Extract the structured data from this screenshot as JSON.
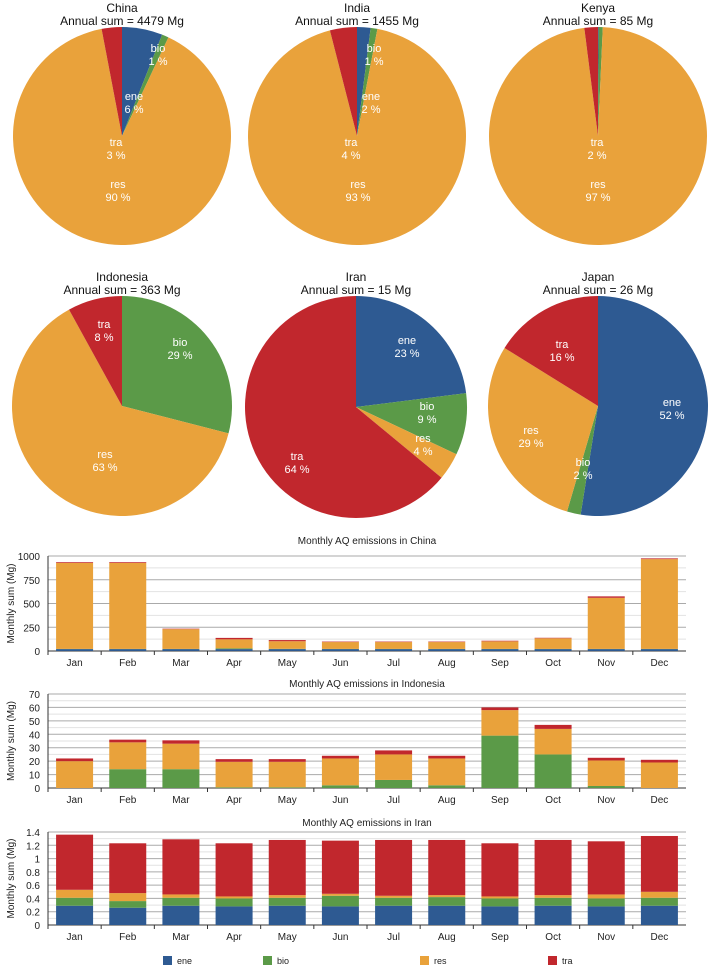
{
  "colors": {
    "ene": "#2e5a92",
    "bio": "#5b9a48",
    "res": "#e9a23b",
    "tra": "#c1272d"
  },
  "chart_data": [
    {
      "type": "pie",
      "title": "China",
      "subtitle": "Annual sum = 4479 Mg",
      "slices": [
        {
          "label": "ene",
          "value": 6,
          "text": "6 %",
          "shown": true
        },
        {
          "label": "bio",
          "value": 1,
          "text": "1 %",
          "shown": true
        },
        {
          "label": "res",
          "value": 90,
          "text": "90 %",
          "shown": true
        },
        {
          "label": "tra",
          "value": 3,
          "text": "3 %",
          "shown": true
        }
      ]
    },
    {
      "type": "pie",
      "title": "India",
      "subtitle": "Annual sum = 1455 Mg",
      "slices": [
        {
          "label": "ene",
          "value": 2,
          "text": "2 %",
          "shown": true
        },
        {
          "label": "bio",
          "value": 1,
          "text": "1 %",
          "shown": true
        },
        {
          "label": "res",
          "value": 93,
          "text": "93 %",
          "shown": true
        },
        {
          "label": "tra",
          "value": 4,
          "text": "4 %",
          "shown": true
        }
      ]
    },
    {
      "type": "pie",
      "title": "Kenya",
      "subtitle": "Annual sum = 85 Mg",
      "slices": [
        {
          "label": "ene",
          "value": 0.1,
          "text": "",
          "shown": false
        },
        {
          "label": "bio",
          "value": 0.6,
          "text": "",
          "shown": false
        },
        {
          "label": "res",
          "value": 97,
          "text": "97 %",
          "shown": true
        },
        {
          "label": "tra",
          "value": 2,
          "text": "2 %",
          "shown": true
        }
      ]
    },
    {
      "type": "pie",
      "title": "Indonesia",
      "subtitle": "Annual sum = 363 Mg",
      "slices": [
        {
          "label": "ene",
          "value": 0,
          "text": "",
          "shown": false
        },
        {
          "label": "bio",
          "value": 29,
          "text": "29 %",
          "shown": true
        },
        {
          "label": "res",
          "value": 63,
          "text": "63 %",
          "shown": true
        },
        {
          "label": "tra",
          "value": 8,
          "text": "8 %",
          "shown": true
        }
      ]
    },
    {
      "type": "pie",
      "title": "Iran",
      "subtitle": "Annual sum = 15 Mg",
      "slices": [
        {
          "label": "ene",
          "value": 23,
          "text": "23 %",
          "shown": true
        },
        {
          "label": "bio",
          "value": 9,
          "text": "9 %",
          "shown": true
        },
        {
          "label": "res",
          "value": 4,
          "text": "4 %",
          "shown": true
        },
        {
          "label": "tra",
          "value": 64,
          "text": "64 %",
          "shown": true
        }
      ]
    },
    {
      "type": "pie",
      "title": "Japan",
      "subtitle": "Annual sum = 26 Mg",
      "slices": [
        {
          "label": "ene",
          "value": 52,
          "text": "52 %",
          "shown": true
        },
        {
          "label": "bio",
          "value": 2,
          "text": "2 %",
          "shown": true
        },
        {
          "label": "res",
          "value": 29,
          "text": "29 %",
          "shown": true
        },
        {
          "label": "tra",
          "value": 16,
          "text": "16 %",
          "shown": true
        }
      ]
    },
    {
      "type": "bar",
      "stacked": true,
      "title": "Monthly AQ emissions in China",
      "ylabel": "Monthly sum (Mg)",
      "ylim": [
        0,
        1000
      ],
      "yticks": [
        "0",
        "250",
        "500",
        "750",
        "1000"
      ],
      "categories": [
        "Jan",
        "Feb",
        "Mar",
        "Apr",
        "May",
        "Jun",
        "Jul",
        "Aug",
        "Sep",
        "Oct",
        "Nov",
        "Dec"
      ],
      "series": [
        {
          "name": "ene",
          "values": [
            20,
            20,
            20,
            20,
            20,
            20,
            20,
            20,
            20,
            20,
            20,
            20
          ]
        },
        {
          "name": "bio",
          "values": [
            2,
            2,
            2,
            8,
            3,
            2,
            2,
            2,
            2,
            2,
            2,
            2
          ]
        },
        {
          "name": "res",
          "values": [
            905,
            905,
            208,
            95,
            80,
            72,
            72,
            72,
            80,
            112,
            538,
            945
          ]
        },
        {
          "name": "tra",
          "values": [
            8,
            8,
            5,
            15,
            12,
            5,
            5,
            5,
            6,
            5,
            15,
            8
          ]
        }
      ]
    },
    {
      "type": "bar",
      "stacked": true,
      "title": "Monthly AQ emissions in Indonesia",
      "ylabel": "Monthly sum (Mg)",
      "ylim": [
        0,
        70
      ],
      "yticks": [
        "0",
        "10",
        "20",
        "30",
        "40",
        "50",
        "60",
        "70"
      ],
      "categories": [
        "Jan",
        "Feb",
        "Mar",
        "Apr",
        "May",
        "Jun",
        "Jul",
        "Aug",
        "Sep",
        "Oct",
        "Nov",
        "Dec"
      ],
      "series": [
        {
          "name": "ene",
          "values": [
            0,
            0,
            0,
            0,
            0,
            0,
            0,
            0,
            0,
            0,
            0,
            0
          ]
        },
        {
          "name": "bio",
          "values": [
            0,
            14,
            14,
            0.5,
            0.5,
            2,
            6,
            2,
            39,
            25,
            1.5,
            0
          ]
        },
        {
          "name": "res",
          "values": [
            20,
            20,
            19,
            19,
            19,
            20,
            19,
            20,
            19,
            19,
            19,
            19
          ]
        },
        {
          "name": "tra",
          "values": [
            2,
            2,
            2.5,
            2,
            2,
            2,
            3,
            2,
            2,
            3,
            2,
            2
          ]
        }
      ]
    },
    {
      "type": "bar",
      "stacked": true,
      "title": "Monthly AQ emissions in Iran",
      "ylabel": "Monthly sum (Mg)",
      "ylim": [
        0,
        1.4
      ],
      "yticks": [
        "0",
        "0.2",
        "0.4",
        "0.6",
        "0.8",
        "1",
        "1.2",
        "1.4"
      ],
      "categories": [
        "Jan",
        "Feb",
        "Mar",
        "Apr",
        "May",
        "Jun",
        "Jul",
        "Aug",
        "Sep",
        "Oct",
        "Nov",
        "Dec"
      ],
      "series": [
        {
          "name": "ene",
          "values": [
            0.29,
            0.26,
            0.29,
            0.28,
            0.29,
            0.28,
            0.29,
            0.29,
            0.28,
            0.29,
            0.28,
            0.29
          ]
        },
        {
          "name": "bio",
          "values": [
            0.12,
            0.1,
            0.12,
            0.12,
            0.12,
            0.16,
            0.12,
            0.13,
            0.12,
            0.12,
            0.12,
            0.12
          ]
        },
        {
          "name": "res",
          "values": [
            0.12,
            0.12,
            0.05,
            0.03,
            0.04,
            0.03,
            0.03,
            0.03,
            0.03,
            0.04,
            0.06,
            0.09
          ]
        },
        {
          "name": "tra",
          "values": [
            0.83,
            0.75,
            0.83,
            0.8,
            0.83,
            0.8,
            0.84,
            0.83,
            0.8,
            0.83,
            0.8,
            0.84
          ]
        }
      ]
    }
  ],
  "legend": [
    {
      "key": "ene",
      "label": "ene"
    },
    {
      "key": "bio",
      "label": "bio"
    },
    {
      "key": "res",
      "label": "res"
    },
    {
      "key": "tra",
      "label": "tra"
    }
  ]
}
